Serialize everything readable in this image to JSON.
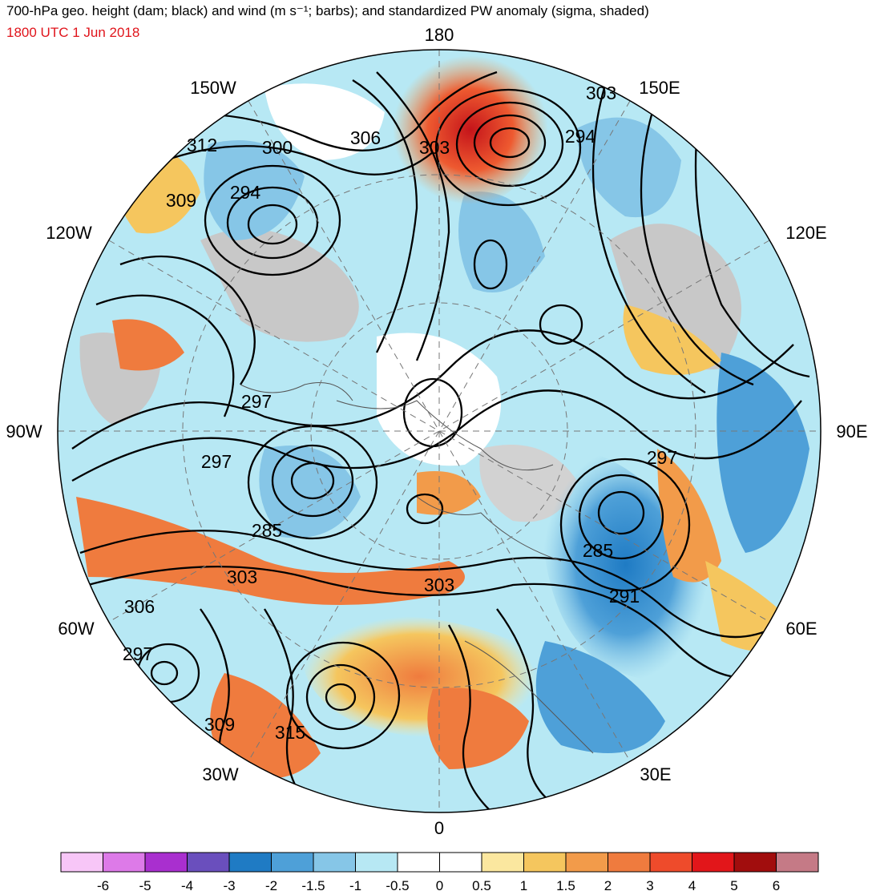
{
  "header": {
    "title": "700-hPa geo. height (dam; black) and wind (m s⁻¹; barbs); and standardized PW anomaly (sigma, shaded)",
    "valid_time": "1800 UTC 1 Jun 2018"
  },
  "map": {
    "projection": "north-polar-stereographic",
    "longitude_labels": [
      "180",
      "150E",
      "120E",
      "90E",
      "60E",
      "30E",
      "0",
      "30W",
      "60W",
      "90W",
      "120W",
      "150W"
    ],
    "contour_labels": [
      "303",
      "294",
      "306",
      "303",
      "300",
      "312",
      "294",
      "309",
      "297",
      "297",
      "285",
      "285",
      "297",
      "303",
      "303",
      "306",
      "291",
      "297",
      "309",
      "315"
    ]
  },
  "colorbar": {
    "tick_labels": [
      "-6",
      "-5",
      "-4",
      "-3",
      "-2",
      "-1.5",
      "-1",
      "-0.5",
      "0",
      "0.5",
      "1",
      "1.5",
      "2",
      "3",
      "4",
      "5",
      "6"
    ],
    "colors": [
      "#f7c6f7",
      "#dd7ae8",
      "#a92fcf",
      "#6a4fbd",
      "#1f7bc4",
      "#4ea0d8",
      "#86c6e7",
      "#b7e8f4",
      "#ffffff",
      "#ffffff",
      "#fbe79f",
      "#f5c65e",
      "#f29b4a",
      "#ef7b3e",
      "#ee4b2b",
      "#e2161a",
      "#a10d0d",
      "#c57a86"
    ]
  }
}
